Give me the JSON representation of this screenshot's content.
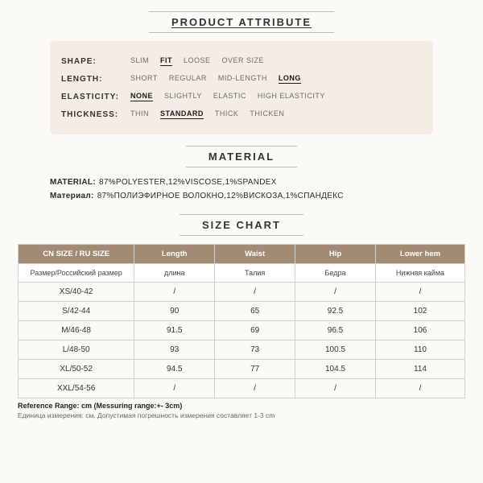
{
  "colors": {
    "page_bg": "#fcfaf7",
    "attr_box_bg": "#f3ede4",
    "table_header_bg": "#a28b73",
    "table_header_fg": "#ffffff",
    "border": "#cfcfcf",
    "text": "#2a2a2a",
    "muted": "#6b6b6b"
  },
  "sections": {
    "product_attribute": "PRODUCT ATTRIBUTE",
    "material": "MATERIAL",
    "size_chart": "SIZE CHART"
  },
  "attributes": [
    {
      "label": "SHAPE:",
      "options": [
        "SLIM",
        "FIT",
        "LOOSE",
        "OVER SIZE"
      ],
      "selected": "FIT"
    },
    {
      "label": "LENGTH:",
      "options": [
        "SHORT",
        "REGULAR",
        "MID-LENGTH",
        "LONG"
      ],
      "selected": "LONG"
    },
    {
      "label": "ELASTICITY:",
      "options": [
        "NONE",
        "SLIGHTLY",
        "ELASTIC",
        "HIGH ELASTICITY"
      ],
      "selected": "NONE"
    },
    {
      "label": "THICKNESS:",
      "options": [
        "THIN",
        "STANDARD",
        "THICK",
        "THICKEN"
      ],
      "selected": "STANDARD"
    }
  ],
  "material": {
    "label_en": "MATERIAL:",
    "value_en": "87%POLYESTER,12%VISCOSE,1%SPANDEX",
    "label_ru": "Материал:",
    "value_ru": "87%ПОЛИЭФИРНОЕ ВОЛОКНО,12%ВИСКОЗА,1%СПАНДЕКС"
  },
  "size_chart": {
    "columns_en": [
      "CN SIZE / RU SIZE",
      "Length",
      "Waist",
      "Hip",
      "Lower hem"
    ],
    "columns_ru": [
      "Размер/Российский размер",
      "длина",
      "Талия",
      "Бедра",
      "Нижняя кайма"
    ],
    "col_widths_pct": [
      26,
      18,
      18,
      18,
      20
    ],
    "rows": [
      {
        "size": "XS/40-42",
        "values": [
          "/",
          "/",
          "/",
          "/"
        ]
      },
      {
        "size": "S/42-44",
        "values": [
          "90",
          "65",
          "92.5",
          "102"
        ]
      },
      {
        "size": "M/46-48",
        "values": [
          "91.5",
          "69",
          "96.5",
          "106"
        ]
      },
      {
        "size": "L/48-50",
        "values": [
          "93",
          "73",
          "100.5",
          "110"
        ]
      },
      {
        "size": "XL/50-52",
        "values": [
          "94.5",
          "77",
          "104.5",
          "114"
        ]
      },
      {
        "size": "XXL/54-56",
        "values": [
          "/",
          "/",
          "/",
          "/"
        ]
      }
    ]
  },
  "reference": {
    "line_en": "Reference Range: cm (Messuring range:+- 3cm)",
    "line_ru": "Единица измерения: см. Допустимая погрешность измерения составляет 1-3 cm"
  }
}
